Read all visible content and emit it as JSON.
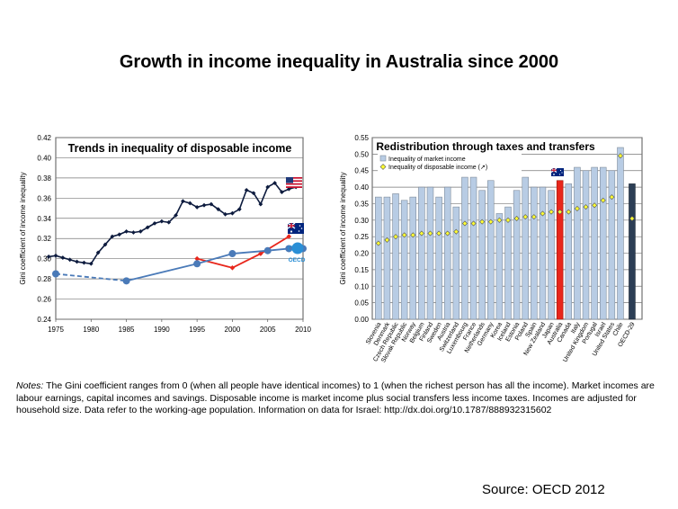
{
  "page": {
    "title": "Growth in income inequality in Australia since 2000",
    "notes_label": "Notes:",
    "notes_text": " The Gini coefficient ranges from 0 (when all people have identical incomes) to 1 (when the richest person has all the income). Market incomes are labour earnings, capital incomes and savings. Disposable income is market income plus social transfers less income taxes. Incomes are adjusted for household size. Data refer to the working-age population. Information on data for Israel: http://dx.doi.org/10.1787/888932315602",
    "source": "Source: OECD 2012"
  },
  "colors": {
    "us": "#0d1b3e",
    "australia": "#e8261b",
    "oecd": "#4a7ab8",
    "market_bar": "#b8cce4",
    "disposable_marker": "#ffff33",
    "australia_bar": "#e8261b",
    "oecd29_bar": "#2c3e55"
  },
  "icons": [
    "us-flag-icon",
    "australia-flag-icon",
    "oecd-logo-icon"
  ],
  "chart_data": [
    {
      "type": "line",
      "title": "Trends in inequality of disposable income",
      "ylabel": "Gini coefficient of income inequality",
      "xlim": [
        1975,
        2010
      ],
      "ylim": [
        0.24,
        0.42
      ],
      "xticks": [
        "1975",
        "1980",
        "1985",
        "1990",
        "1995",
        "2000",
        "2005",
        "2010"
      ],
      "yticks": [
        "0.24",
        "0.26",
        "0.28",
        "0.30",
        "0.32",
        "0.34",
        "0.36",
        "0.38",
        "0.40",
        "0.42"
      ],
      "grid": true,
      "oecd_logo_text": "OECD",
      "series": [
        {
          "key": "us",
          "x": [
            1974,
            1975,
            1976,
            1977,
            1978,
            1979,
            1980,
            1981,
            1982,
            1983,
            1984,
            1985,
            1986,
            1987,
            1988,
            1989,
            1990,
            1991,
            1992,
            1993,
            1994,
            1995,
            1996,
            1997,
            1998,
            1999,
            2000,
            2001,
            2002,
            2003,
            2004,
            2005,
            2006,
            2007,
            2008,
            2009
          ],
          "y": [
            0.302,
            0.303,
            0.301,
            0.299,
            0.297,
            0.296,
            0.295,
            0.306,
            0.314,
            0.322,
            0.324,
            0.327,
            0.326,
            0.327,
            0.331,
            0.335,
            0.337,
            0.336,
            0.343,
            0.357,
            0.355,
            0.351,
            0.353,
            0.354,
            0.349,
            0.344,
            0.345,
            0.349,
            0.368,
            0.365,
            0.354,
            0.371,
            0.375,
            0.366,
            0.369,
            0.371
          ]
        },
        {
          "key": "australia",
          "x": [
            1995,
            2000,
            2004,
            2008
          ],
          "y": [
            0.3,
            0.291,
            0.305,
            0.322
          ]
        },
        {
          "key": "oecd",
          "x": [
            1975,
            1985,
            1995,
            2000,
            2005,
            2008,
            2010
          ],
          "y": [
            0.285,
            0.278,
            0.295,
            0.305,
            0.308,
            0.31,
            0.31
          ],
          "dashed_until": 1985
        }
      ]
    },
    {
      "type": "bar",
      "title": "Redistribution through taxes and transfers",
      "ylabel": "Gini coefficient of income inequality",
      "ylim": [
        0,
        0.55
      ],
      "yticks": [
        "0.00",
        "0.05",
        "0.10",
        "0.15",
        "0.20",
        "0.25",
        "0.30",
        "0.35",
        "0.40",
        "0.45",
        "0.50",
        "0.55"
      ],
      "grid": true,
      "legend": {
        "placement": "top-left",
        "entries": [
          "Inequality of market income",
          "Inequality of disposable income (↗)"
        ]
      },
      "categories": [
        "Slovenia",
        "Denmark",
        "Czech Republic",
        "Slovak Republic",
        "Norway",
        "Belgium",
        "Finland",
        "Sweden",
        "Austria",
        "Switzerland",
        "Luxembourg",
        "France",
        "Netherlands",
        "Germany",
        "Korea",
        "Iceland",
        "Estonia",
        "Poland",
        "Spain",
        "New Zealand",
        "Japan",
        "Australia",
        "Canada",
        "Italy",
        "United Kingdom",
        "Portugal",
        "Israel",
        "United States",
        "Chile",
        "OECD-29"
      ],
      "series": [
        {
          "name": "Inequality of market income",
          "values": [
            0.37,
            0.37,
            0.38,
            0.36,
            0.37,
            0.4,
            0.4,
            0.37,
            0.4,
            0.34,
            0.43,
            0.43,
            0.39,
            0.42,
            0.32,
            0.34,
            0.39,
            0.43,
            0.4,
            0.4,
            0.39,
            0.42,
            0.41,
            0.46,
            0.45,
            0.46,
            0.46,
            0.45,
            0.52,
            0.41
          ]
        },
        {
          "name": "Inequality of disposable income (↗)",
          "values": [
            0.23,
            0.24,
            0.25,
            0.255,
            0.255,
            0.26,
            0.26,
            0.26,
            0.26,
            0.265,
            0.29,
            0.29,
            0.295,
            0.295,
            0.3,
            0.3,
            0.305,
            0.31,
            0.31,
            0.32,
            0.325,
            0.325,
            0.325,
            0.335,
            0.34,
            0.345,
            0.36,
            0.37,
            0.495,
            0.305
          ]
        }
      ]
    }
  ]
}
